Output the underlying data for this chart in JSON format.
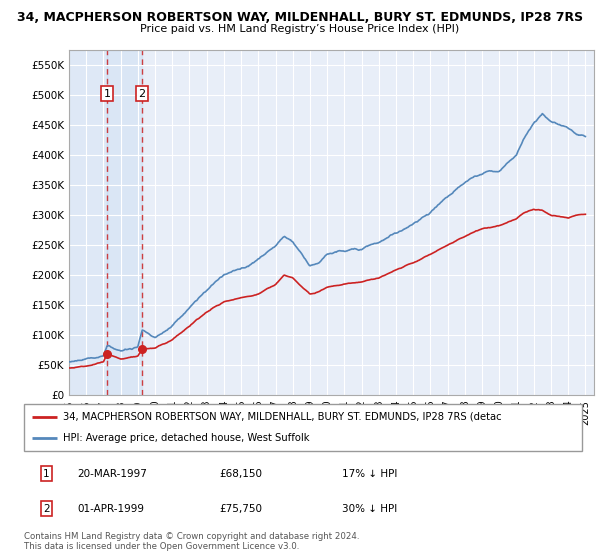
{
  "title_line1": "34, MACPHERSON ROBERTSON WAY, MILDENHALL, BURY ST. EDMUNDS, IP28 7RS",
  "title_line2": "Price paid vs. HM Land Registry’s House Price Index (HPI)",
  "ylim": [
    0,
    575000
  ],
  "yticks": [
    0,
    50000,
    100000,
    150000,
    200000,
    250000,
    300000,
    350000,
    400000,
    450000,
    500000,
    550000
  ],
  "ytick_labels": [
    "£0",
    "£50K",
    "£100K",
    "£150K",
    "£200K",
    "£250K",
    "£300K",
    "£350K",
    "£400K",
    "£450K",
    "£500K",
    "£550K"
  ],
  "background_color": "#e8eef8",
  "grid_color": "#ffffff",
  "hpi_color": "#5588bb",
  "price_color": "#cc2222",
  "sale1_date_x": 1997.22,
  "sale1_price": 68150,
  "sale1_label": "1",
  "sale2_date_x": 1999.25,
  "sale2_price": 75750,
  "sale2_label": "2",
  "legend_line1": "34, MACPHERSON ROBERTSON WAY, MILDENHALL, BURY ST. EDMUNDS, IP28 7RS (detac",
  "legend_line2": "HPI: Average price, detached house, West Suffolk",
  "table_row1": [
    "1",
    "20-MAR-1997",
    "£68,150",
    "17% ↓ HPI"
  ],
  "table_row2": [
    "2",
    "01-APR-1999",
    "£75,750",
    "30% ↓ HPI"
  ],
  "footer": "Contains HM Land Registry data © Crown copyright and database right 2024.\nThis data is licensed under the Open Government Licence v3.0.",
  "xmin": 1995.0,
  "xmax": 2025.5,
  "hpi_base": [
    [
      1995.0,
      55000
    ],
    [
      1996.0,
      60000
    ],
    [
      1997.0,
      65000
    ],
    [
      1997.22,
      82000
    ],
    [
      1998.0,
      72000
    ],
    [
      1999.0,
      80000
    ],
    [
      1999.25,
      108000
    ],
    [
      2000.0,
      95000
    ],
    [
      2001.0,
      115000
    ],
    [
      2002.0,
      145000
    ],
    [
      2003.0,
      175000
    ],
    [
      2004.0,
      200000
    ],
    [
      2005.0,
      210000
    ],
    [
      2006.0,
      225000
    ],
    [
      2007.0,
      250000
    ],
    [
      2007.5,
      265000
    ],
    [
      2008.0,
      255000
    ],
    [
      2008.5,
      235000
    ],
    [
      2009.0,
      215000
    ],
    [
      2009.5,
      220000
    ],
    [
      2010.0,
      235000
    ],
    [
      2011.0,
      240000
    ],
    [
      2012.0,
      245000
    ],
    [
      2013.0,
      255000
    ],
    [
      2014.0,
      270000
    ],
    [
      2015.0,
      285000
    ],
    [
      2016.0,
      305000
    ],
    [
      2017.0,
      330000
    ],
    [
      2018.0,
      355000
    ],
    [
      2019.0,
      370000
    ],
    [
      2020.0,
      375000
    ],
    [
      2021.0,
      400000
    ],
    [
      2021.5,
      430000
    ],
    [
      2022.0,
      455000
    ],
    [
      2022.5,
      470000
    ],
    [
      2023.0,
      455000
    ],
    [
      2023.5,
      450000
    ],
    [
      2024.0,
      445000
    ],
    [
      2024.5,
      435000
    ],
    [
      2025.0,
      430000
    ]
  ],
  "price_base": [
    [
      1995.0,
      45000
    ],
    [
      1996.0,
      48000
    ],
    [
      1997.0,
      55000
    ],
    [
      1997.22,
      68150
    ],
    [
      1998.0,
      60000
    ],
    [
      1999.0,
      65000
    ],
    [
      1999.25,
      75750
    ],
    [
      2000.0,
      78000
    ],
    [
      2001.0,
      92000
    ],
    [
      2002.0,
      115000
    ],
    [
      2003.0,
      138000
    ],
    [
      2004.0,
      155000
    ],
    [
      2005.0,
      162000
    ],
    [
      2006.0,
      168000
    ],
    [
      2007.0,
      185000
    ],
    [
      2007.5,
      200000
    ],
    [
      2008.0,
      195000
    ],
    [
      2008.5,
      182000
    ],
    [
      2009.0,
      168000
    ],
    [
      2009.5,
      172000
    ],
    [
      2010.0,
      180000
    ],
    [
      2011.0,
      185000
    ],
    [
      2012.0,
      188000
    ],
    [
      2013.0,
      195000
    ],
    [
      2014.0,
      208000
    ],
    [
      2015.0,
      220000
    ],
    [
      2016.0,
      235000
    ],
    [
      2017.0,
      250000
    ],
    [
      2018.0,
      265000
    ],
    [
      2019.0,
      278000
    ],
    [
      2020.0,
      282000
    ],
    [
      2021.0,
      295000
    ],
    [
      2021.5,
      305000
    ],
    [
      2022.0,
      310000
    ],
    [
      2022.5,
      308000
    ],
    [
      2023.0,
      300000
    ],
    [
      2023.5,
      298000
    ],
    [
      2024.0,
      295000
    ],
    [
      2024.5,
      300000
    ],
    [
      2025.0,
      302000
    ]
  ]
}
